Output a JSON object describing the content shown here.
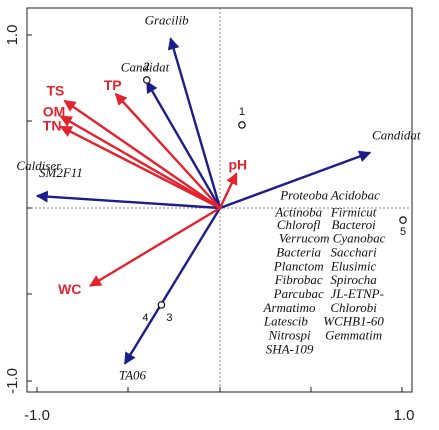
{
  "chart_data": {
    "type": "biplot",
    "title": "",
    "xlabel": "",
    "ylabel": "",
    "xlim": [
      -1.0,
      1.0
    ],
    "ylim": [
      -1.0,
      1.0
    ],
    "x_ticks": [
      "-1.0",
      "1.0"
    ],
    "y_ticks": [
      "1.0",
      "-1.0"
    ],
    "colors": {
      "environment": "#e3232e",
      "species": "#1c1f8a",
      "frame": "#222222",
      "zero_line": "#888888"
    },
    "environment_arrows": [
      {
        "label": "TS",
        "x": -0.85,
        "y": 0.62
      },
      {
        "label": "OM",
        "x": -0.87,
        "y": 0.53
      },
      {
        "label": "TN",
        "x": -0.87,
        "y": 0.47
      },
      {
        "label": "TP",
        "x": -0.57,
        "y": 0.66
      },
      {
        "label": "pH",
        "x": 0.09,
        "y": 0.2
      },
      {
        "label": "WC",
        "x": -0.71,
        "y": -0.45
      }
    ],
    "species_arrows": [
      {
        "label": "Gracilib",
        "x": -0.27,
        "y": 0.98
      },
      {
        "label": "Candidat",
        "x": -0.4,
        "y": 0.73
      },
      {
        "label": "Candidat",
        "x": 0.82,
        "y": 0.32
      },
      {
        "label": "TA06",
        "x": -0.52,
        "y": -0.9
      },
      {
        "label": "SM2F11",
        "x": -1.0,
        "y": 0.07
      }
    ],
    "species_labels_only": [
      {
        "label": "Caldiser",
        "x": -0.99,
        "y": 0.22
      },
      {
        "label": "Proteoba",
        "x": 0.46,
        "y": 0.05
      },
      {
        "label": "Acidobac",
        "x": 0.74,
        "y": 0.05
      },
      {
        "label": "Actinoba",
        "x": 0.43,
        "y": -0.05
      },
      {
        "label": "Firmicut",
        "x": 0.73,
        "y": -0.05
      },
      {
        "label": "Chlorofl",
        "x": 0.43,
        "y": -0.12
      },
      {
        "label": "Bacteroi",
        "x": 0.73,
        "y": -0.12
      },
      {
        "label": "Verrucom",
        "x": 0.46,
        "y": -0.2
      },
      {
        "label": "Cyanobac",
        "x": 0.76,
        "y": -0.2
      },
      {
        "label": "Bacteria",
        "x": 0.43,
        "y": -0.28
      },
      {
        "label": "Sacchari",
        "x": 0.73,
        "y": -0.28
      },
      {
        "label": "Planctom",
        "x": 0.43,
        "y": -0.36
      },
      {
        "label": "Elusimic",
        "x": 0.73,
        "y": -0.36
      },
      {
        "label": "Fibrobac",
        "x": 0.43,
        "y": -0.44
      },
      {
        "label": "Spirocha",
        "x": 0.73,
        "y": -0.44
      },
      {
        "label": "Parcubac",
        "x": 0.43,
        "y": -0.52
      },
      {
        "label": "JL-ETNP-",
        "x": 0.75,
        "y": -0.52
      },
      {
        "label": "Armatimo",
        "x": 0.38,
        "y": -0.6
      },
      {
        "label": "Chlorobi",
        "x": 0.73,
        "y": -0.6
      },
      {
        "label": "Latescib",
        "x": 0.36,
        "y": -0.68
      },
      {
        "label": "WCHB1-60",
        "x": 0.73,
        "y": -0.68
      },
      {
        "label": "Nitrospi",
        "x": 0.38,
        "y": -0.76
      },
      {
        "label": "Gemmatim",
        "x": 0.73,
        "y": -0.76
      },
      {
        "label": "SHA-109",
        "x": 0.38,
        "y": -0.84
      }
    ],
    "samples": [
      {
        "label": "1",
        "x": 0.12,
        "y": 0.48
      },
      {
        "label": "2",
        "x": -0.4,
        "y": 0.74
      },
      {
        "label": "3",
        "x": -0.32,
        "y": -0.56
      },
      {
        "label": "4",
        "x": -0.32,
        "y": -0.56
      },
      {
        "label": "5",
        "x": 1.0,
        "y": -0.07
      }
    ]
  }
}
